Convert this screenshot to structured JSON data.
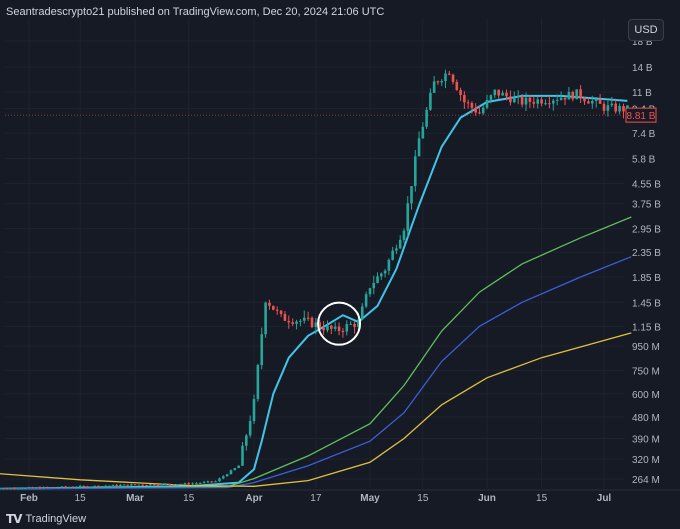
{
  "header": {
    "text": "Seantradescrypto21 published on TradingView.com, Dec 20, 2024 21:06 UTC"
  },
  "currency_button": "USD",
  "footer": {
    "logo_icon": "tradingview-logo-icon",
    "brand": "TradingView"
  },
  "colors": {
    "background": "#161a25",
    "grid": "#1f2330",
    "up_candle": "#26a69a",
    "down_candle": "#ef5350",
    "ma_cyan": "#3fc5e8",
    "ma_green": "#5ec05a",
    "ma_blue": "#3a5fd8",
    "ma_yellow": "#e0c040",
    "price_badge": "#ef5350",
    "highlight_circle": "#ffffff"
  },
  "chart_data": {
    "type": "line",
    "scale": "log",
    "current_price_label": "8.81 B",
    "x_ticks": [
      "Feb",
      "15",
      "Mar",
      "15",
      "Apr",
      "17",
      "May",
      "15",
      "Jun",
      "15",
      "Jul"
    ],
    "y_ticks": [
      "18 B",
      "14 B",
      "11 B",
      "9.4 B",
      "7.4 B",
      "5.8 B",
      "4.55 B",
      "3.75 B",
      "2.95 B",
      "2.35 B",
      "1.85 B",
      "1.45 B",
      "1.15 B",
      "950 M",
      "750 M",
      "600 M",
      "480 M",
      "390 M",
      "320 M",
      "264 M"
    ],
    "price": [
      {
        "d": "Jan 21",
        "v": 240000000
      },
      {
        "d": "Feb 15",
        "v": 245000000
      },
      {
        "d": "Mar 1",
        "v": 250000000
      },
      {
        "d": "Mar 15",
        "v": 252000000
      },
      {
        "d": "Mar 22",
        "v": 258000000
      },
      {
        "d": "Mar 28",
        "v": 300000000
      },
      {
        "d": "Apr 1",
        "v": 550000000
      },
      {
        "d": "Apr 4",
        "v": 1500000000
      },
      {
        "d": "Apr 8",
        "v": 1250000000
      },
      {
        "d": "Apr 15",
        "v": 1200000000
      },
      {
        "d": "Apr 22",
        "v": 1100000000
      },
      {
        "d": "Apr 28",
        "v": 1200000000
      },
      {
        "d": "May 1",
        "v": 1700000000
      },
      {
        "d": "May 5",
        "v": 2000000000
      },
      {
        "d": "May 10",
        "v": 3000000000
      },
      {
        "d": "May 14",
        "v": 7000000000
      },
      {
        "d": "May 18",
        "v": 12000000000
      },
      {
        "d": "May 22",
        "v": 13500000000
      },
      {
        "d": "May 26",
        "v": 10000000000
      },
      {
        "d": "May 30",
        "v": 9000000000
      },
      {
        "d": "Jun 3",
        "v": 11000000000
      },
      {
        "d": "Jun 10",
        "v": 10000000000
      },
      {
        "d": "Jun 17",
        "v": 10300000000
      },
      {
        "d": "Jun 24",
        "v": 10800000000
      },
      {
        "d": "Jul 1",
        "v": 9500000000
      },
      {
        "d": "Jul 7",
        "v": 9300000000
      }
    ],
    "series": [
      {
        "color": "cyan",
        "points": [
          {
            "d": "Jan 21",
            "v": 240000000
          },
          {
            "d": "Mar 15",
            "v": 246000000
          },
          {
            "d": "Mar 28",
            "v": 255000000
          },
          {
            "d": "Apr 1",
            "v": 290000000
          },
          {
            "d": "Apr 3",
            "v": 380000000
          },
          {
            "d": "Apr 6",
            "v": 600000000
          },
          {
            "d": "Apr 10",
            "v": 850000000
          },
          {
            "d": "Apr 15",
            "v": 1050000000
          },
          {
            "d": "Apr 20",
            "v": 1170000000
          },
          {
            "d": "Apr 24",
            "v": 1280000000
          },
          {
            "d": "Apr 28",
            "v": 1200000000
          },
          {
            "d": "May 3",
            "v": 1400000000
          },
          {
            "d": "May 8",
            "v": 2000000000
          },
          {
            "d": "May 14",
            "v": 3700000000
          },
          {
            "d": "May 20",
            "v": 6500000000
          },
          {
            "d": "May 25",
            "v": 8600000000
          },
          {
            "d": "Jun 1",
            "v": 10000000000
          },
          {
            "d": "Jun 10",
            "v": 10600000000
          },
          {
            "d": "Jun 20",
            "v": 10600000000
          },
          {
            "d": "Jul 7",
            "v": 10100000000
          }
        ]
      },
      {
        "color": "green",
        "points": [
          {
            "d": "Jan 21",
            "v": 240000000
          },
          {
            "d": "Mar 25",
            "v": 245000000
          },
          {
            "d": "Apr 1",
            "v": 265000000
          },
          {
            "d": "Apr 15",
            "v": 330000000
          },
          {
            "d": "May 1",
            "v": 450000000
          },
          {
            "d": "May 10",
            "v": 650000000
          },
          {
            "d": "May 20",
            "v": 1100000000
          },
          {
            "d": "May 30",
            "v": 1600000000
          },
          {
            "d": "Jun 10",
            "v": 2100000000
          },
          {
            "d": "Jun 25",
            "v": 2700000000
          },
          {
            "d": "Jul 8",
            "v": 3300000000
          }
        ]
      },
      {
        "color": "blue",
        "points": [
          {
            "d": "Jan 21",
            "v": 240000000
          },
          {
            "d": "Mar 25",
            "v": 243000000
          },
          {
            "d": "Apr 1",
            "v": 255000000
          },
          {
            "d": "Apr 15",
            "v": 300000000
          },
          {
            "d": "May 1",
            "v": 380000000
          },
          {
            "d": "May 10",
            "v": 500000000
          },
          {
            "d": "May 20",
            "v": 820000000
          },
          {
            "d": "May 30",
            "v": 1150000000
          },
          {
            "d": "Jun 10",
            "v": 1450000000
          },
          {
            "d": "Jun 25",
            "v": 1850000000
          },
          {
            "d": "Jul 8",
            "v": 2250000000
          }
        ]
      },
      {
        "color": "yellow",
        "points": [
          {
            "d": "Jan 21",
            "v": 280000000
          },
          {
            "d": "Feb 15",
            "v": 262000000
          },
          {
            "d": "Mar 15",
            "v": 248000000
          },
          {
            "d": "Apr 1",
            "v": 246000000
          },
          {
            "d": "Apr 15",
            "v": 260000000
          },
          {
            "d": "May 1",
            "v": 310000000
          },
          {
            "d": "May 10",
            "v": 390000000
          },
          {
            "d": "May 20",
            "v": 540000000
          },
          {
            "d": "Jun 1",
            "v": 700000000
          },
          {
            "d": "Jun 15",
            "v": 850000000
          },
          {
            "d": "Jul 8",
            "v": 1080000000
          }
        ]
      }
    ],
    "annotation": {
      "type": "circle",
      "d": "Apr 23",
      "v": 1180000000
    }
  }
}
